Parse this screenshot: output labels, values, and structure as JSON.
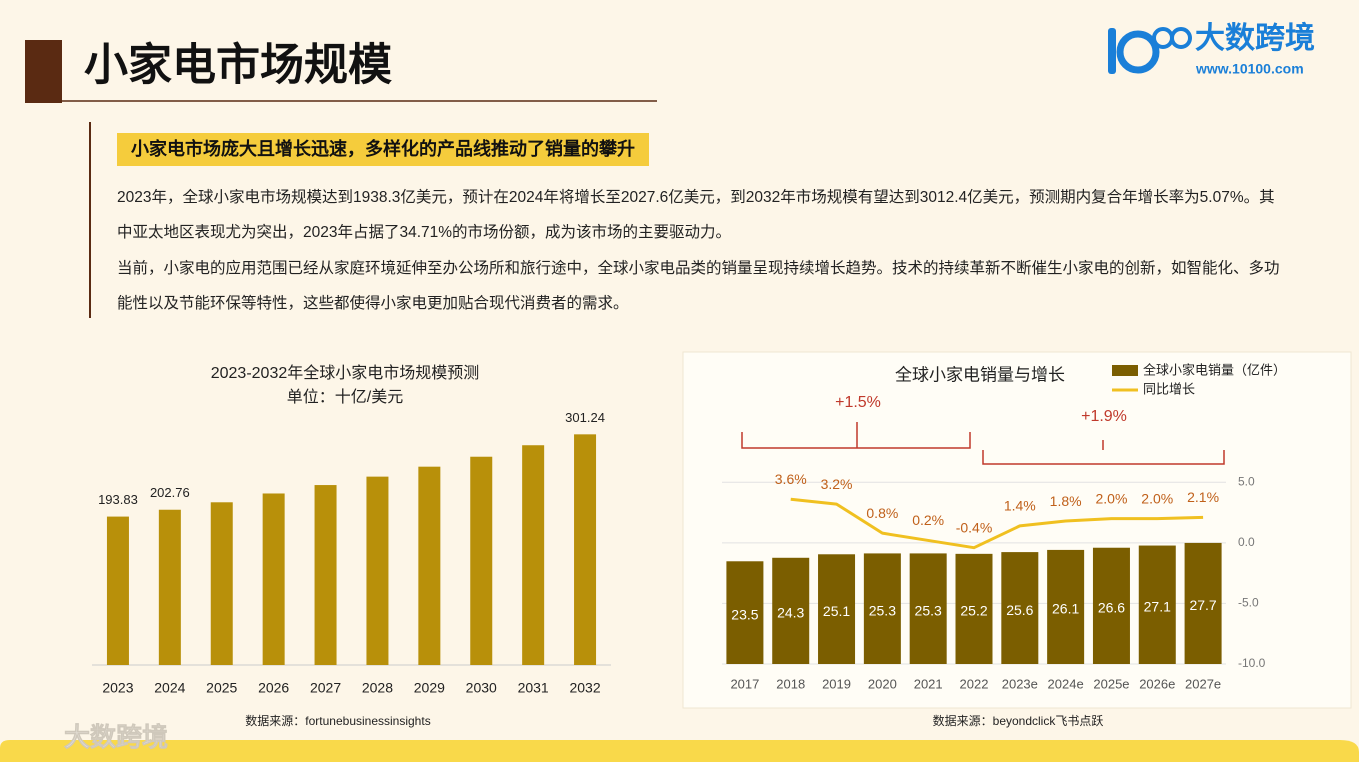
{
  "header": {
    "title": "小家电市场规模"
  },
  "logo": {
    "name": "大数跨境",
    "url": "www.10100.com"
  },
  "summary": {
    "headline": "小家电市场庞大且增长迅速，多样化的产品线推动了销量的攀升",
    "paragraphs": [
      "2023年，全球小家电市场规模达到1938.3亿美元，预计在2024年将增长至2027.6亿美元，到2032年市场规模有望达到3012.4亿美元，预测期内复合年增长率为5.07%。其中亚太地区表现尤为突出，2023年占据了34.71%的市场份额，成为该市场的主要驱动力。",
      "当前，小家电的应用范围已经从家庭环境延伸至办公场所和旅行途中，全球小家电品类的销量呈现持续增长趋势。技术的持续革新不断催生小家电的创新，如智能化、多功能性以及节能环保等特性，这些都使得小家电更加贴合现代消费者的需求。"
    ]
  },
  "chart_data": [
    {
      "type": "bar",
      "title": "2023-2032年全球小家电市场规模预测",
      "subtitle": "单位：十亿/美元",
      "categories": [
        "2023",
        "2024",
        "2025",
        "2026",
        "2027",
        "2028",
        "2029",
        "2030",
        "2031",
        "2032"
      ],
      "values": [
        193.83,
        202.76,
        212.5,
        224,
        235,
        246,
        259,
        272,
        287,
        301.24
      ],
      "value_labels": [
        "193.83",
        "202.76",
        null,
        null,
        null,
        null,
        null,
        null,
        null,
        "301.24"
      ],
      "color": "#b8900a",
      "ylim": [
        0,
        350
      ],
      "source": "数据来源：fortunebusinessinsights"
    },
    {
      "type": "combo",
      "title": "全球小家电销量与增长",
      "categories": [
        "2017",
        "2018",
        "2019",
        "2020",
        "2021",
        "2022",
        "2023e",
        "2024e",
        "2025e",
        "2026e",
        "2027e"
      ],
      "series": [
        {
          "name": "全球小家电销量（亿件）",
          "type": "bar",
          "color": "#7b5e00",
          "values": [
            23.5,
            24.3,
            25.1,
            25.3,
            25.3,
            25.2,
            25.6,
            26.1,
            26.6,
            27.1,
            27.7
          ]
        },
        {
          "name": "同比增长",
          "type": "line",
          "axis": "y2",
          "color": "#f0c020",
          "values": [
            null,
            3.6,
            3.2,
            0.8,
            0.2,
            -0.4,
            1.4,
            1.8,
            2.0,
            2.0,
            2.1
          ],
          "value_labels": [
            null,
            "3.6%",
            "3.2%",
            "0.8%",
            "0.2%",
            "-0.4%",
            "1.4%",
            "1.8%",
            "2.0%",
            "2.0%",
            "2.1%"
          ]
        }
      ],
      "ylim": [
        0,
        48.5
      ],
      "y2lim": [
        -10,
        7.5
      ],
      "y2ticks": [
        {
          "value": 5,
          "label": "5.0"
        },
        {
          "value": 0,
          "label": "0.0"
        },
        {
          "value": -5,
          "label": "-5.0"
        },
        {
          "value": -10,
          "label": "-10.0"
        }
      ],
      "grid": true,
      "annotations": [
        "+1.5%",
        "+1.9%"
      ],
      "source": "数据来源：beyondclick飞书点跃"
    }
  ],
  "footer": {
    "watermark": "大数跨境"
  }
}
